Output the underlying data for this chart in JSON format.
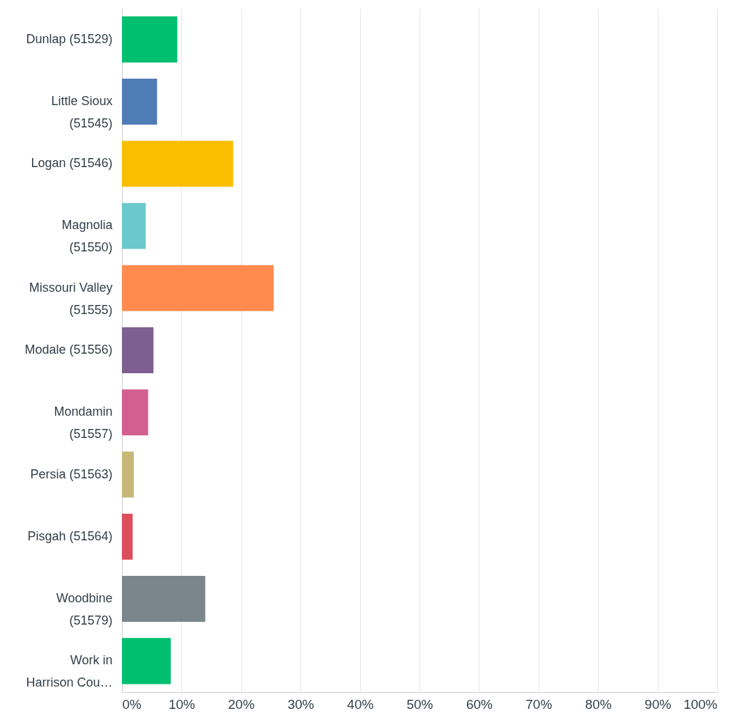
{
  "chart_data": {
    "type": "bar",
    "orientation": "horizontal",
    "categories": [
      "Dunlap (51529)",
      "Little Sioux (51545)",
      "Logan (51546)",
      "Magnolia (51550)",
      "Missouri Valley (51555)",
      "Modale (51556)",
      "Mondamin (51557)",
      "Persia (51563)",
      "Pisgah (51564)",
      "Woodbine (51579)",
      "Work in Harrison Cou…"
    ],
    "values": [
      9.3,
      5.9,
      18.7,
      4.0,
      25.5,
      5.3,
      4.4,
      2.0,
      1.8,
      14.0,
      8.2
    ],
    "colors": [
      "#00bf6f",
      "#507cb6",
      "#f9be00",
      "#6bc8cd",
      "#ff8b4f",
      "#7f5f90",
      "#d25f90",
      "#c9b77a",
      "#dd4e5d",
      "#7b868c",
      "#00bf6f"
    ],
    "xlim": [
      0,
      100
    ],
    "xticks": [
      {
        "value": 0,
        "label": "0%"
      },
      {
        "value": 10,
        "label": "10%"
      },
      {
        "value": 20,
        "label": "20%"
      },
      {
        "value": 30,
        "label": "30%"
      },
      {
        "value": 40,
        "label": "40%"
      },
      {
        "value": 50,
        "label": "50%"
      },
      {
        "value": 60,
        "label": "60%"
      },
      {
        "value": 70,
        "label": "70%"
      },
      {
        "value": 80,
        "label": "80%"
      },
      {
        "value": 90,
        "label": "90%"
      },
      {
        "value": 100,
        "label": "100%"
      }
    ],
    "grid": "x"
  }
}
